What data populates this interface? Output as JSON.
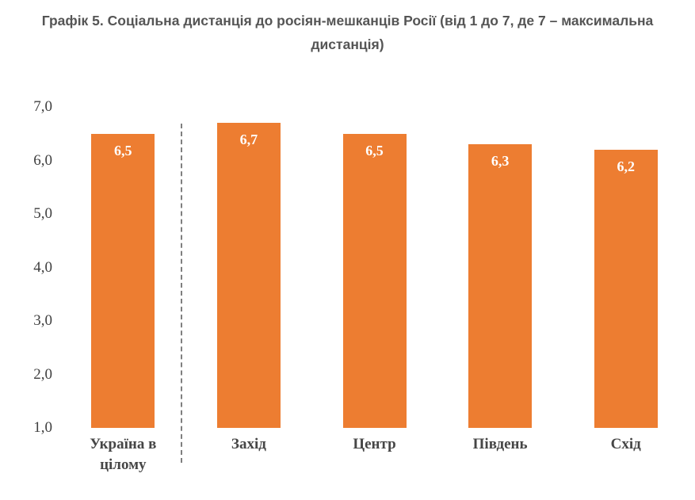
{
  "figure": {
    "title": "Графік 5. Соціальна дистанція до росіян-мешканців Росії (від 1 до 7, де 7 – максимальна дистанція)"
  },
  "chart_data": {
    "type": "bar",
    "title": "Графік 5. Соціальна дистанція до росіян-мешканців Росії (від 1 до 7, де 7 – максимальна дистанція)",
    "categories": [
      "Україна в цілому",
      "Захід",
      "Центр",
      "Південь",
      "Схід"
    ],
    "values": [
      6.5,
      6.7,
      6.5,
      6.3,
      6.2
    ],
    "value_labels": [
      "6,5",
      "6,7",
      "6,5",
      "6,3",
      "6,2"
    ],
    "yticks": [
      7,
      6,
      5,
      4,
      3,
      2,
      1
    ],
    "ytick_labels": [
      "7,0",
      "6,0",
      "5,0",
      "4,0",
      "3,0",
      "2,0",
      "1,0"
    ],
    "ylim": [
      1,
      7
    ],
    "xlabel": "",
    "ylabel": "",
    "grid": false,
    "legend": false,
    "bar_color": "#ED7D31",
    "value_label_color": "#FFFFFF",
    "axis_text_color": "#3F3F3F",
    "title_color": "#555555",
    "separator_dashed_line_after_category": "Україна в цілому",
    "separator_color": "#7F7F7F"
  }
}
